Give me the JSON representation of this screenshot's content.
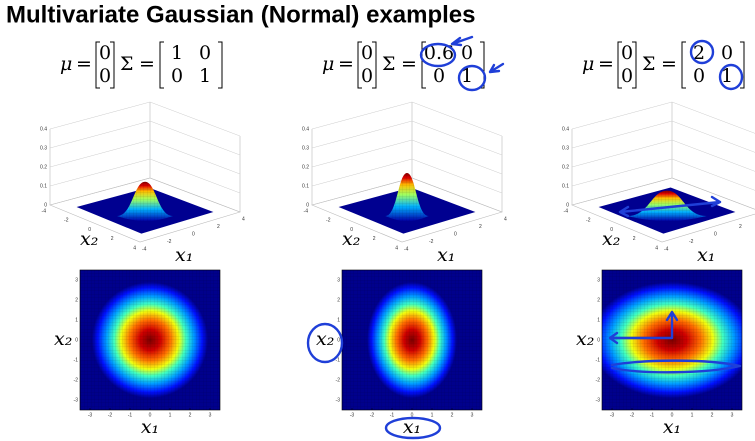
{
  "title": "Multivariate Gaussian (Normal) examples",
  "symbols": {
    "mu": "μ",
    "sigma": "Σ",
    "equals": "="
  },
  "axis_labels": {
    "x1": "x₁",
    "x2": "x₂"
  },
  "surface_z_ticks": [
    0,
    0.1,
    0.2,
    0.3,
    0.4
  ],
  "surface_xy_ticks": [
    -4,
    -2,
    0,
    2,
    4
  ],
  "heatmap_ticks": [
    -3,
    -2,
    -1,
    0,
    1,
    2,
    3
  ],
  "panels": [
    {
      "mu": [
        0,
        0
      ],
      "sigma": [
        [
          1,
          0
        ],
        [
          0,
          1
        ]
      ]
    },
    {
      "mu": [
        0,
        0
      ],
      "sigma": [
        [
          0.6,
          0
        ],
        [
          0,
          1
        ]
      ]
    },
    {
      "mu": [
        0,
        0
      ],
      "sigma": [
        [
          2,
          0
        ],
        [
          0,
          1
        ]
      ]
    }
  ]
}
